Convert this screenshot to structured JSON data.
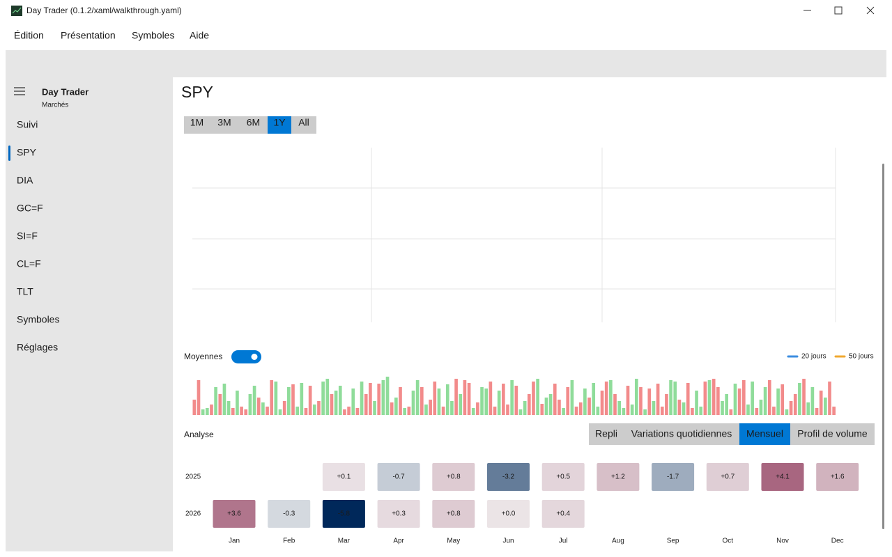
{
  "window": {
    "title": "Day Trader (0.1.2/xaml/walkthrough.yaml)"
  },
  "menu": [
    "Édition",
    "Présentation",
    "Symboles",
    "Aide"
  ],
  "sidebar": {
    "app": "Day Trader",
    "subtitle": "Marchés",
    "items": [
      "Suivi",
      "SPY",
      "DIA",
      "GC=F",
      "SI=F",
      "CL=F",
      "TLT",
      "Symboles",
      "Réglages"
    ],
    "selected": 1
  },
  "main": {
    "title": "SPY",
    "ranges": [
      "1M",
      "3M",
      "6M",
      "1Y",
      "All"
    ],
    "selected_range": 3,
    "averages_label": "Moyennes",
    "averages_on": true,
    "legend": [
      {
        "name": "20 jours",
        "color": "#3b8de0"
      },
      {
        "name": "50 jours",
        "color": "#f0a830"
      }
    ],
    "volume": {
      "ylim": [
        0,
        60
      ],
      "up_color": "#8fdc9a",
      "down_color": "#f28b8b",
      "values": [
        22,
        50,
        8,
        10,
        15,
        40,
        30,
        45,
        20,
        10,
        35,
        12,
        8,
        30,
        42,
        25,
        18,
        12,
        50,
        48,
        8,
        20,
        40,
        44,
        12,
        46,
        10,
        42,
        15,
        20,
        48,
        52,
        30,
        35,
        42,
        8,
        12,
        38,
        10,
        48,
        30,
        46,
        20,
        45,
        50,
        55,
        18,
        25,
        40,
        10,
        12,
        35,
        50,
        40,
        15,
        22,
        48,
        38,
        12,
        44,
        20,
        52,
        30,
        50,
        46,
        10,
        18,
        40,
        38,
        48,
        12,
        35,
        45,
        15,
        50,
        42,
        8,
        20,
        30,
        48,
        52,
        16,
        25,
        30,
        45,
        22,
        10,
        40,
        50,
        12,
        18,
        38,
        25,
        46,
        12,
        35,
        48,
        50,
        30,
        20,
        10,
        42,
        15,
        52,
        40,
        8,
        38,
        20,
        45,
        12,
        30,
        50,
        48,
        22,
        18,
        46,
        10,
        35,
        12,
        48,
        50,
        52,
        40,
        20,
        30,
        8,
        45,
        38,
        50,
        15,
        48,
        10,
        22,
        40,
        50,
        12,
        38,
        44,
        8,
        20,
        30,
        46,
        52,
        18,
        40,
        10,
        35,
        25,
        48,
        12
      ],
      "up": [
        0,
        0,
        1,
        1,
        0,
        1,
        0,
        1,
        1,
        0,
        1,
        0,
        0,
        1,
        1,
        0,
        1,
        0,
        0,
        1,
        1,
        0,
        1,
        0,
        1,
        1,
        0,
        0,
        1,
        0,
        1,
        1,
        0,
        1,
        1,
        0,
        0,
        1,
        0,
        1,
        0,
        0,
        1,
        0,
        1,
        1,
        0,
        1,
        0,
        1,
        0,
        1,
        1,
        0,
        1,
        0,
        0,
        1,
        0,
        1,
        1,
        0,
        1,
        0,
        0,
        1,
        0,
        1,
        1,
        0,
        0,
        1,
        0,
        0,
        1,
        0,
        1,
        1,
        0,
        0,
        1,
        0,
        1,
        1,
        0,
        0,
        1,
        0,
        1,
        0,
        0,
        1,
        0,
        1,
        1,
        0,
        0,
        1,
        0,
        1,
        1,
        0,
        1,
        1,
        0,
        1,
        0,
        1,
        0,
        0,
        0,
        1,
        1,
        0,
        1,
        0,
        0,
        1,
        1,
        0,
        1,
        0,
        0,
        1,
        1,
        0,
        1,
        0,
        0,
        1,
        1,
        0,
        1,
        1,
        0,
        0,
        1,
        0,
        1,
        0,
        0,
        1,
        0,
        1,
        1,
        0,
        0,
        1,
        0,
        0
      ]
    },
    "analysis_label": "Analyse",
    "tabs": [
      "Repli",
      "Variations quotidiennes",
      "Mensuel",
      "Profil de volume"
    ],
    "selected_tab": 2,
    "heatmap": {
      "years": [
        "2025",
        "2026"
      ],
      "months": [
        "Jan",
        "Feb",
        "Mar",
        "Apr",
        "May",
        "Jun",
        "Jul",
        "Aug",
        "Sep",
        "Oct",
        "Nov",
        "Dec"
      ],
      "positive_color": "#8c3255",
      "negative_color": "#00285a",
      "values": [
        [
          null,
          null,
          0.1,
          -0.7,
          0.8,
          -3.2,
          0.5,
          1.2,
          -1.7,
          0.7,
          4.1,
          1.6
        ],
        [
          3.6,
          -0.3,
          -5.8,
          0.3,
          0.8,
          0.0,
          0.4,
          null,
          null,
          null,
          null,
          null
        ]
      ],
      "value_labels": [
        [
          null,
          null,
          "+0.1",
          "-0.7",
          "+0.8",
          "-3.2",
          "+0.5",
          "+1.2",
          "-1.7",
          "+0.7",
          "+4.1",
          "+1.6"
        ],
        [
          "+3.6",
          "-0.3",
          "-5.8",
          "+0.3",
          "+0.8",
          "+0.0",
          "+0.4",
          null,
          null,
          null,
          null,
          null
        ]
      ]
    }
  }
}
